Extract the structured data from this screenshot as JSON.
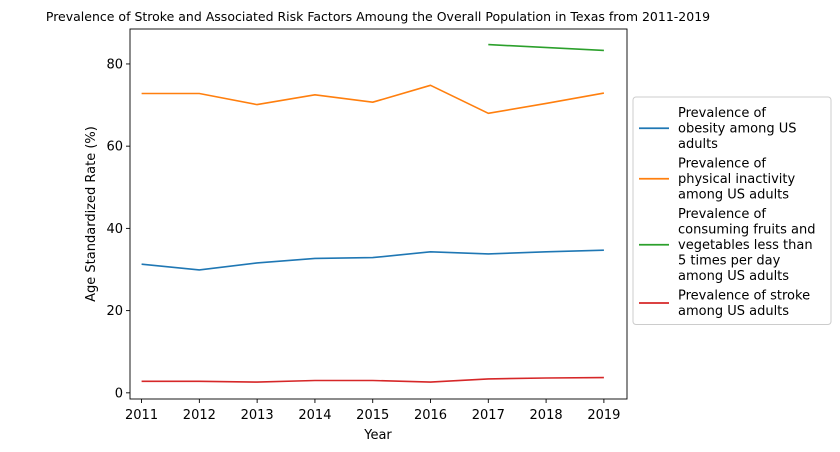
{
  "chart_data": {
    "type": "line",
    "title": "Prevalence of Stroke and Associated Risk Factors Amoung the Overall Population in Texas from 2011-2019",
    "xlabel": "Year",
    "ylabel": "Age Standardized Rate (%)",
    "x": [
      2011,
      2012,
      2013,
      2014,
      2015,
      2016,
      2017,
      2018,
      2019
    ],
    "xlim": [
      2010.8,
      2019.4
    ],
    "ylim": [
      -1.5,
      88.5
    ],
    "yticks": [
      0,
      20,
      40,
      60,
      80
    ],
    "grid": false,
    "legend_position": "outside-right",
    "series": [
      {
        "name": "Prevalence of obesity among US adults",
        "name_lines": [
          "Prevalence of",
          "obesity among US",
          "adults"
        ],
        "color": "#1f77b4",
        "values": [
          31.3,
          29.9,
          31.6,
          32.7,
          32.9,
          34.3,
          33.8,
          34.3,
          34.7
        ]
      },
      {
        "name": "Prevalence of physical inactivity among US adults",
        "name_lines": [
          "Prevalence of",
          "physical inactivity",
          "among US adults"
        ],
        "color": "#ff7f0e",
        "values": [
          72.8,
          72.8,
          70.1,
          72.5,
          70.7,
          74.8,
          68.0,
          70.4,
          72.9
        ]
      },
      {
        "name": "Prevalence of consuming fruits and vegetables less than 5 times per day among US adults",
        "name_lines": [
          "Prevalence of",
          "consuming fruits and",
          "vegetables less than",
          "5 times per day",
          "among US adults"
        ],
        "color": "#2ca02c",
        "values": [
          null,
          null,
          null,
          null,
          null,
          null,
          84.7,
          null,
          83.3
        ]
      },
      {
        "name": "Prevalence of stroke among US adults",
        "name_lines": [
          "Prevalence of stroke",
          "among US adults"
        ],
        "color": "#d62728",
        "values": [
          2.8,
          2.8,
          2.6,
          3.0,
          3.0,
          2.6,
          3.4,
          3.6,
          3.7
        ]
      }
    ]
  }
}
